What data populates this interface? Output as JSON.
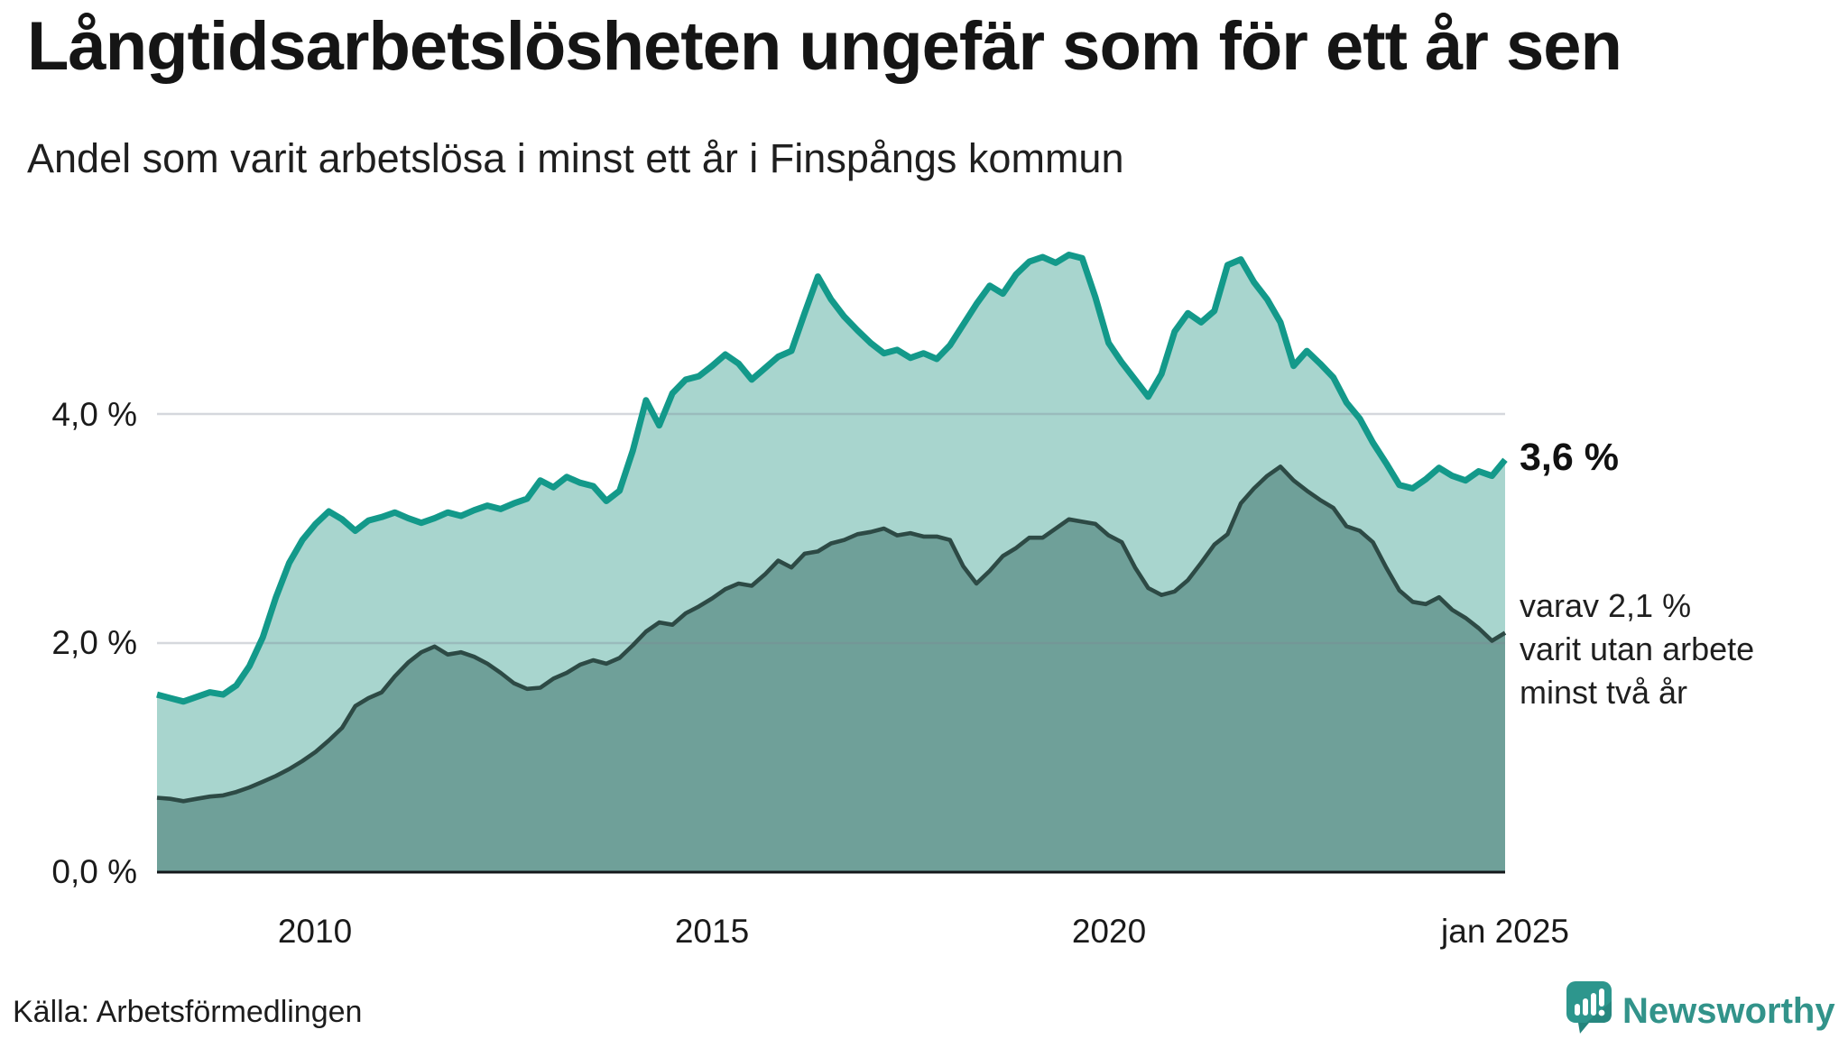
{
  "title": "Långtidsarbetslösheten ungefär som för ett år sen",
  "subtitle": "Andel som varit arbetslösa i minst ett år i Finspångs kommun",
  "source": "Källa: Arbetsförmedlingen",
  "logo": {
    "text": "Newsworthy",
    "icon": "newsworthy-speech-bubble-bar-chart-icon"
  },
  "colors": {
    "accent_teal_line": "#13998a",
    "light_area_fill": "#a8d5ce",
    "dark_area_line": "#2d4a45",
    "dark_area_fill": "#6fa099",
    "gridline": "rgba(125,135,148,0.32)",
    "baseline": "#14181b",
    "text": "#1a1a1a",
    "logo_teal": "#2d968d"
  },
  "chart_data": {
    "type": "area",
    "title": "Andel som varit arbetslösa i minst ett år i Finspångs kommun",
    "xlabel": "",
    "ylabel": "",
    "x_start_year": 2008.0,
    "x_end_year": 2025.0,
    "points_per_year": 6,
    "ylim": [
      0,
      5.8
    ],
    "grid": "horizontal",
    "legend_position": "none",
    "x_ticks": [
      {
        "label": "2010",
        "year": 2010
      },
      {
        "label": "2015",
        "year": 2015
      },
      {
        "label": "2020",
        "year": 2020
      },
      {
        "label": "jan 2025",
        "year": 2025
      }
    ],
    "y_ticks": [
      {
        "label": "0,0 %",
        "value": 0
      },
      {
        "label": "2,0 %",
        "value": 2
      },
      {
        "label": "4,0 %",
        "value": 4
      }
    ],
    "series": [
      {
        "name": "Arbetslösa minst ett år",
        "end_label": "3,6 %",
        "end_value": 3.6,
        "line_color": "#13998a",
        "fill_color": "#a8d5ce",
        "values": [
          1.55,
          1.52,
          1.49,
          1.53,
          1.57,
          1.55,
          1.63,
          1.8,
          2.05,
          2.4,
          2.7,
          2.9,
          3.04,
          3.15,
          3.08,
          2.98,
          3.07,
          3.1,
          3.14,
          3.09,
          3.05,
          3.09,
          3.14,
          3.11,
          3.16,
          3.2,
          3.17,
          3.22,
          3.26,
          3.42,
          3.36,
          3.45,
          3.4,
          3.37,
          3.24,
          3.33,
          3.68,
          4.12,
          3.9,
          4.18,
          4.3,
          4.33,
          4.42,
          4.52,
          4.44,
          4.3,
          4.4,
          4.5,
          4.55,
          4.88,
          5.2,
          5.0,
          4.85,
          4.73,
          4.62,
          4.53,
          4.56,
          4.49,
          4.53,
          4.48,
          4.6,
          4.78,
          4.96,
          5.12,
          5.05,
          5.22,
          5.33,
          5.37,
          5.32,
          5.39,
          5.36,
          5.02,
          4.62,
          4.45,
          4.3,
          4.15,
          4.35,
          4.72,
          4.88,
          4.8,
          4.9,
          5.3,
          5.35,
          5.15,
          5.0,
          4.8,
          4.42,
          4.55,
          4.44,
          4.32,
          4.1,
          3.96,
          3.75,
          3.57,
          3.38,
          3.35,
          3.43,
          3.53,
          3.46,
          3.42,
          3.5,
          3.46,
          3.6
        ]
      },
      {
        "name": "Varav arbetslösa minst två år",
        "end_value": 2.1,
        "annotation": [
          "varav 2,1 %",
          "varit utan arbete",
          "minst två år"
        ],
        "line_color": "#2d4a45",
        "fill_color": "#6fa099",
        "values": [
          0.65,
          0.64,
          0.62,
          0.64,
          0.66,
          0.67,
          0.7,
          0.74,
          0.79,
          0.84,
          0.9,
          0.97,
          1.05,
          1.15,
          1.26,
          1.45,
          1.52,
          1.57,
          1.71,
          1.83,
          1.92,
          1.97,
          1.9,
          1.92,
          1.88,
          1.82,
          1.74,
          1.65,
          1.6,
          1.61,
          1.69,
          1.74,
          1.81,
          1.85,
          1.82,
          1.87,
          1.98,
          2.1,
          2.18,
          2.16,
          2.26,
          2.32,
          2.39,
          2.47,
          2.52,
          2.5,
          2.6,
          2.72,
          2.66,
          2.78,
          2.8,
          2.87,
          2.9,
          2.95,
          2.97,
          3.0,
          2.94,
          2.96,
          2.93,
          2.93,
          2.9,
          2.67,
          2.52,
          2.63,
          2.76,
          2.83,
          2.92,
          2.92,
          3.0,
          3.08,
          3.06,
          3.04,
          2.94,
          2.88,
          2.66,
          2.48,
          2.42,
          2.45,
          2.55,
          2.7,
          2.86,
          2.95,
          3.22,
          3.35,
          3.46,
          3.54,
          3.42,
          3.33,
          3.25,
          3.18,
          3.02,
          2.98,
          2.88,
          2.66,
          2.46,
          2.36,
          2.34,
          2.4,
          2.29,
          2.22,
          2.13,
          2.02,
          2.09
        ]
      }
    ]
  }
}
